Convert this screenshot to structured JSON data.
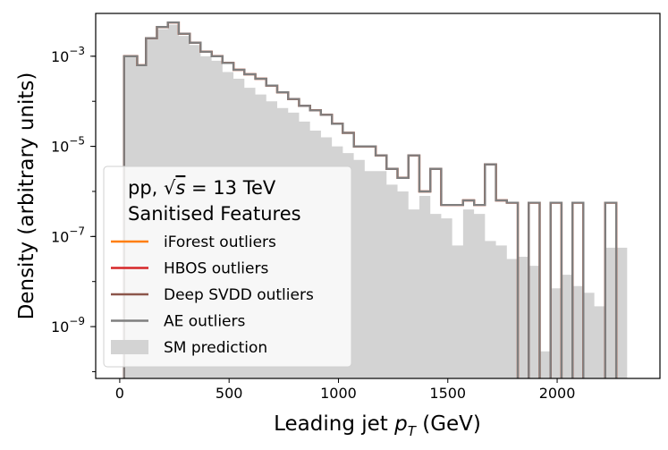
{
  "chart_data": {
    "type": "histogram-step",
    "xlabel": "Leading jet p_T (GeV)",
    "ylabel": "Density (arbitrary units)",
    "xlim": [
      -110,
      2470
    ],
    "ylim_exp": [
      -10.15,
      -2.05
    ],
    "y_scale": "log",
    "x_ticks": [
      0,
      500,
      1000,
      1500,
      2000
    ],
    "y_ticks": [
      {
        "exp": -3,
        "base": "10",
        "sup": "−3"
      },
      {
        "exp": -5,
        "base": "10",
        "sup": "−5"
      },
      {
        "exp": -7,
        "base": "10",
        "sup": "−7"
      },
      {
        "exp": -9,
        "base": "10",
        "sup": "−9"
      }
    ],
    "bin_edges": [
      20,
      80,
      120,
      170,
      220,
      270,
      320,
      370,
      420,
      470,
      520,
      570,
      620,
      670,
      720,
      770,
      820,
      870,
      920,
      970,
      1020,
      1070,
      1120,
      1170,
      1220,
      1270,
      1320,
      1370,
      1420,
      1470,
      1520,
      1570,
      1620,
      1670,
      1720,
      1770,
      1820,
      1870,
      1920,
      1970,
      2020,
      2070,
      2120,
      2170,
      2220,
      2270,
      2320
    ],
    "title_lines": [
      "pp, √s = 13 TeV",
      "Sanitised Features"
    ],
    "legend_position": "lower-left",
    "series": [
      {
        "name": "SM prediction",
        "kind": "fill",
        "color": "#d3d3d3",
        "log10": [
          -3.0,
          -3.2,
          -2.6,
          -2.4,
          -2.3,
          -2.55,
          -2.75,
          -3.0,
          -3.1,
          -3.35,
          -3.5,
          -3.7,
          -3.85,
          -4.0,
          -4.15,
          -4.25,
          -4.45,
          -4.65,
          -4.8,
          -5.0,
          -5.15,
          -5.3,
          -5.55,
          -5.55,
          -5.85,
          -6.0,
          -6.4,
          -6.1,
          -6.5,
          -6.6,
          -7.2,
          -6.4,
          -6.5,
          -7.1,
          -7.2,
          -7.5,
          -7.45,
          -7.65,
          -9.55,
          -8.15,
          -7.85,
          -8.1,
          -8.25,
          -8.55,
          -7.25,
          -7.25
        ]
      },
      {
        "name": "iForest outliers",
        "kind": "line",
        "color": "#ff7f0e",
        "log10": [
          -3.0,
          -3.2,
          -2.6,
          -2.35,
          -2.25,
          -2.5,
          -2.7,
          -2.9,
          -3.0,
          -3.15,
          -3.3,
          -3.4,
          -3.5,
          -3.65,
          -3.8,
          -3.95,
          -4.1,
          -4.2,
          -4.3,
          -4.5,
          -4.7,
          -5.0,
          -5.0,
          -5.2,
          -5.5,
          -5.7,
          -5.2,
          -6.0,
          -5.5,
          -6.3,
          -6.3,
          -6.2,
          -6.3,
          -5.4,
          -6.2,
          -6.25,
          -11,
          -6.25,
          -11,
          -6.25,
          -11,
          -6.25,
          -11,
          -11,
          -6.25,
          -11
        ]
      },
      {
        "name": "HBOS outliers",
        "kind": "line",
        "color": "#d62728",
        "log10": [
          -3.0,
          -3.2,
          -2.6,
          -2.35,
          -2.25,
          -2.5,
          -2.7,
          -2.9,
          -3.0,
          -3.15,
          -3.3,
          -3.4,
          -3.5,
          -3.65,
          -3.8,
          -3.95,
          -4.1,
          -4.2,
          -4.3,
          -4.5,
          -4.7,
          -5.0,
          -5.0,
          -5.2,
          -5.5,
          -5.7,
          -5.2,
          -6.0,
          -5.5,
          -6.3,
          -6.3,
          -6.2,
          -6.3,
          -5.4,
          -6.2,
          -6.25,
          -11,
          -6.25,
          -11,
          -6.25,
          -11,
          -6.25,
          -11,
          -11,
          -6.25,
          -11
        ]
      },
      {
        "name": "Deep SVDD outliers",
        "kind": "line",
        "color": "#8c564b",
        "log10": [
          -3.0,
          -3.2,
          -2.6,
          -2.35,
          -2.25,
          -2.5,
          -2.7,
          -2.9,
          -3.0,
          -3.15,
          -3.3,
          -3.4,
          -3.5,
          -3.65,
          -3.8,
          -3.95,
          -4.1,
          -4.2,
          -4.3,
          -4.5,
          -4.7,
          -5.0,
          -5.0,
          -5.2,
          -5.5,
          -5.7,
          -5.2,
          -6.0,
          -5.5,
          -6.3,
          -6.3,
          -6.2,
          -6.3,
          -5.4,
          -6.2,
          -6.25,
          -11,
          -6.25,
          -11,
          -6.25,
          -11,
          -6.25,
          -11,
          -11,
          -6.25,
          -11
        ]
      },
      {
        "name": "AE outliers",
        "kind": "line",
        "color": "#7f7f7f",
        "log10": [
          -3.0,
          -3.2,
          -2.6,
          -2.35,
          -2.25,
          -2.5,
          -2.7,
          -2.9,
          -3.0,
          -3.15,
          -3.3,
          -3.4,
          -3.5,
          -3.65,
          -3.8,
          -3.95,
          -4.1,
          -4.2,
          -4.3,
          -4.5,
          -4.7,
          -5.0,
          -5.0,
          -5.2,
          -5.5,
          -5.7,
          -5.2,
          -6.0,
          -5.5,
          -6.3,
          -6.3,
          -6.2,
          -6.3,
          -5.4,
          -6.2,
          -6.25,
          -11,
          -6.25,
          -11,
          -6.25,
          -11,
          -6.25,
          -11,
          -11,
          -6.25,
          -11
        ]
      }
    ]
  }
}
